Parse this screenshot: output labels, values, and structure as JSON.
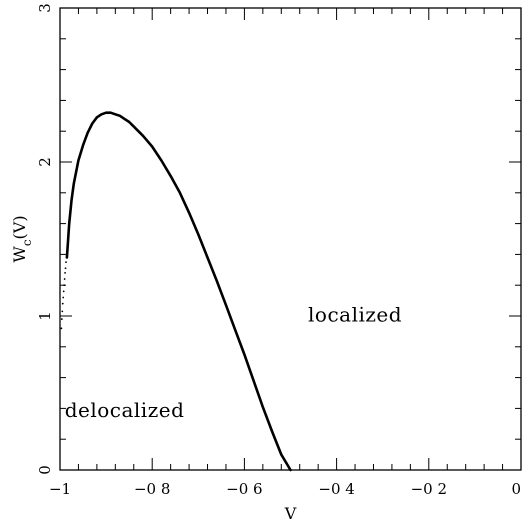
{
  "chart_data": {
    "type": "line",
    "title": "",
    "xlabel": "V",
    "ylabel": "W_c(V)",
    "xlim": [
      -1,
      0
    ],
    "ylim": [
      0,
      3
    ],
    "grid": false,
    "x_ticks": [
      {
        "value": -1,
        "label": "−1"
      },
      {
        "value": -0.8,
        "label": "−0 8"
      },
      {
        "value": -0.6,
        "label": "−0 6"
      },
      {
        "value": -0.4,
        "label": "−0 4"
      },
      {
        "value": -0.2,
        "label": "−0 2"
      },
      {
        "value": 0,
        "label": "0"
      }
    ],
    "y_ticks": [
      {
        "value": 0,
        "label": "0"
      },
      {
        "value": 1,
        "label": "1"
      },
      {
        "value": 2,
        "label": "2"
      },
      {
        "value": 3,
        "label": "3"
      }
    ],
    "series": [
      {
        "x": [
          -0.985,
          -0.98,
          -0.975,
          -0.97,
          -0.96,
          -0.95,
          -0.94,
          -0.93,
          -0.92,
          -0.91,
          -0.9,
          -0.89,
          -0.88,
          -0.87,
          -0.86,
          -0.85,
          -0.84,
          -0.82,
          -0.8,
          -0.78,
          -0.76,
          -0.74,
          -0.72,
          -0.7,
          -0.68,
          -0.66,
          -0.64,
          -0.62,
          -0.6,
          -0.58,
          -0.56,
          -0.54,
          -0.52,
          -0.5
        ],
        "values": [
          1.38,
          1.6,
          1.75,
          1.86,
          2.01,
          2.11,
          2.19,
          2.25,
          2.29,
          2.31,
          2.32,
          2.32,
          2.31,
          2.3,
          2.28,
          2.26,
          2.23,
          2.17,
          2.1,
          2.01,
          1.91,
          1.8,
          1.67,
          1.53,
          1.38,
          1.23,
          1.07,
          0.91,
          0.75,
          0.58,
          0.41,
          0.25,
          0.1,
          0.0
        ]
      },
      {
        "style": "dotted",
        "x": [
          -0.997,
          -0.996,
          -0.995,
          -0.994,
          -0.993,
          -0.992,
          -0.991,
          -0.99,
          -0.989,
          -0.988,
          -0.987
        ],
        "values": [
          0.92,
          0.98,
          1.03,
          1.08,
          1.12,
          1.16,
          1.2,
          1.24,
          1.28,
          1.31,
          1.35
        ]
      }
    ],
    "annotations": [
      {
        "text": "localized",
        "x": -0.36,
        "y": 1.0
      },
      {
        "text": "delocalized",
        "x": -0.86,
        "y": 0.38
      }
    ]
  }
}
